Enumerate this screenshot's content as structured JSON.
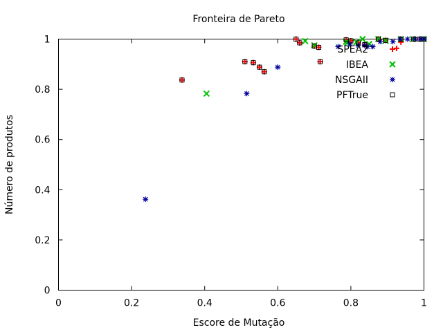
{
  "chart_data": {
    "type": "scatter",
    "title": "Fronteira de Pareto",
    "xlabel": "Escore de Mutação",
    "ylabel": "Número de produtos",
    "xlim": [
      0,
      1
    ],
    "ylim": [
      0,
      1
    ],
    "xticks": [
      "0",
      "0.2",
      "0.4",
      "0.6",
      "0.8",
      "1"
    ],
    "yticks": [
      "0",
      "0.2",
      "0.4",
      "0.6",
      "0.8",
      "1"
    ],
    "grid": false,
    "legend_position": "top-right",
    "series": [
      {
        "name": "SPEA2",
        "marker": "plus",
        "color": "#ff0000",
        "points": [
          [
            0.338,
            0.837
          ],
          [
            0.51,
            0.91
          ],
          [
            0.533,
            0.906
          ],
          [
            0.55,
            0.888
          ],
          [
            0.563,
            0.87
          ],
          [
            0.65,
            1.0
          ],
          [
            0.66,
            0.985
          ],
          [
            0.7,
            0.972
          ],
          [
            0.712,
            0.967
          ],
          [
            0.716,
            0.91
          ],
          [
            0.787,
            0.997
          ],
          [
            0.8,
            0.993
          ],
          [
            0.82,
            0.985
          ],
          [
            0.838,
            0.978
          ],
          [
            0.875,
            1.0
          ],
          [
            0.895,
            0.995
          ],
          [
            0.925,
            0.963
          ],
          [
            0.937,
            0.988
          ],
          [
            0.937,
            1.0
          ],
          [
            0.972,
            1.0
          ],
          [
            0.988,
            1.0
          ],
          [
            1.0,
            1.0
          ]
        ]
      },
      {
        "name": "IBEA",
        "marker": "cross",
        "color": "#00c000",
        "points": [
          [
            0.405,
            0.783
          ],
          [
            0.675,
            0.992
          ],
          [
            0.7,
            0.975
          ],
          [
            0.787,
            0.99
          ],
          [
            0.79,
            0.985
          ],
          [
            0.815,
            0.988
          ],
          [
            0.832,
            1.0
          ],
          [
            0.85,
            0.98
          ],
          [
            0.875,
            1.0
          ],
          [
            0.895,
            0.993
          ],
          [
            0.937,
            1.0
          ],
          [
            0.97,
            1.0
          ],
          [
            1.0,
            1.0
          ]
        ]
      },
      {
        "name": "NSGAII",
        "marker": "star",
        "color": "#0000a0",
        "points": [
          [
            0.238,
            0.362
          ],
          [
            0.515,
            0.783
          ],
          [
            0.6,
            0.888
          ],
          [
            0.765,
            0.97
          ],
          [
            0.797,
            0.98
          ],
          [
            0.82,
            0.975
          ],
          [
            0.838,
            0.975
          ],
          [
            0.845,
            0.97
          ],
          [
            0.86,
            0.97
          ],
          [
            0.88,
            0.99
          ],
          [
            0.915,
            0.99
          ],
          [
            0.935,
            1.0
          ],
          [
            0.955,
            1.0
          ],
          [
            0.975,
            1.0
          ],
          [
            0.99,
            1.0
          ],
          [
            1.0,
            1.0
          ]
        ]
      },
      {
        "name": "PFTrue",
        "marker": "square",
        "color": "#000000",
        "points": [
          [
            0.338,
            0.837
          ],
          [
            0.51,
            0.91
          ],
          [
            0.533,
            0.906
          ],
          [
            0.55,
            0.888
          ],
          [
            0.563,
            0.87
          ],
          [
            0.65,
            1.0
          ],
          [
            0.66,
            0.985
          ],
          [
            0.7,
            0.972
          ],
          [
            0.712,
            0.967
          ],
          [
            0.716,
            0.91
          ],
          [
            0.787,
            0.997
          ],
          [
            0.8,
            0.993
          ],
          [
            0.82,
            0.985
          ],
          [
            0.838,
            0.978
          ],
          [
            0.875,
            1.0
          ],
          [
            0.895,
            0.995
          ],
          [
            0.937,
            1.0
          ],
          [
            0.972,
            1.0
          ],
          [
            0.988,
            1.0
          ],
          [
            1.0,
            1.0
          ]
        ]
      }
    ]
  }
}
